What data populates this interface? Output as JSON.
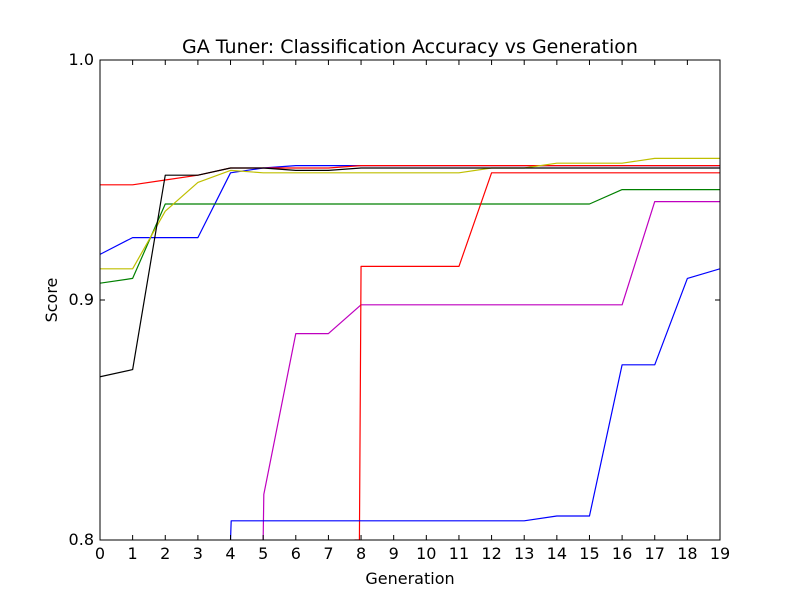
{
  "chart_data": {
    "type": "line",
    "title": "GA Tuner: Classification Accuracy vs Generation",
    "xlabel": "Generation",
    "ylabel": "Score",
    "xlim": [
      0,
      19
    ],
    "ylim": [
      0.8,
      1.0
    ],
    "grid": false,
    "x_ticks": [
      "0",
      "1",
      "2",
      "3",
      "4",
      "5",
      "6",
      "7",
      "8",
      "9",
      "10",
      "11",
      "12",
      "13",
      "14",
      "15",
      "16",
      "17",
      "18",
      "19"
    ],
    "y_ticks": [
      "0.8",
      "0.9",
      "1.0"
    ],
    "series": [
      {
        "color": "#0000ff",
        "x": [
          0,
          1,
          2,
          3,
          4,
          5,
          6,
          7,
          8,
          9,
          10,
          11,
          12,
          13,
          14,
          15,
          16,
          17,
          18,
          19
        ],
        "y": [
          0.919,
          0.926,
          0.926,
          0.926,
          0.953,
          0.955,
          0.956,
          0.956,
          0.956,
          0.956,
          0.956,
          0.956,
          0.956,
          0.956,
          0.956,
          0.956,
          0.956,
          0.956,
          0.956,
          0.956
        ]
      },
      {
        "color": "#008000",
        "x": [
          0,
          1,
          2,
          3,
          4,
          5,
          6,
          7,
          8,
          9,
          10,
          11,
          12,
          13,
          14,
          15,
          16,
          17,
          18,
          19
        ],
        "y": [
          0.907,
          0.909,
          0.94,
          0.94,
          0.94,
          0.94,
          0.94,
          0.94,
          0.94,
          0.94,
          0.94,
          0.94,
          0.94,
          0.94,
          0.94,
          0.94,
          0.946,
          0.946,
          0.946,
          0.946
        ]
      },
      {
        "color": "#ff0000",
        "x": [
          0,
          1,
          2,
          3,
          4,
          5,
          6,
          7,
          8,
          9,
          10,
          11,
          12,
          13,
          14,
          15,
          16,
          17,
          18,
          19
        ],
        "y": [
          0.948,
          0.948,
          0.95,
          0.952,
          0.955,
          0.955,
          0.955,
          0.955,
          0.956,
          0.956,
          0.956,
          0.956,
          0.956,
          0.956,
          0.956,
          0.956,
          0.956,
          0.956,
          0.956,
          0.956
        ]
      },
      {
        "color": "#bfbf00",
        "x": [
          0,
          1,
          2,
          3,
          4,
          5,
          6,
          7,
          8,
          9,
          10,
          11,
          12,
          13,
          14,
          15,
          16,
          17,
          18,
          19
        ],
        "y": [
          0.913,
          0.913,
          0.937,
          0.949,
          0.954,
          0.953,
          0.953,
          0.953,
          0.953,
          0.953,
          0.953,
          0.953,
          0.955,
          0.955,
          0.957,
          0.957,
          0.957,
          0.959,
          0.959,
          0.959
        ]
      },
      {
        "color": "#000000",
        "x": [
          0,
          1,
          2,
          3,
          4,
          5,
          6,
          7,
          8,
          9,
          10,
          11,
          12,
          13,
          14,
          15,
          16,
          17,
          18,
          19
        ],
        "y": [
          0.868,
          0.871,
          0.952,
          0.952,
          0.955,
          0.955,
          0.954,
          0.954,
          0.955,
          0.955,
          0.955,
          0.955,
          0.955,
          0.955,
          0.955,
          0.955,
          0.955,
          0.955,
          0.955,
          0.955
        ]
      },
      {
        "color": "#bf00bf",
        "x": [
          5,
          5.02,
          6,
          7,
          8,
          9,
          10,
          11,
          12,
          13,
          14,
          15,
          16,
          17,
          18,
          19
        ],
        "y": [
          0.8,
          0.819,
          0.886,
          0.886,
          0.898,
          0.898,
          0.898,
          0.898,
          0.898,
          0.898,
          0.898,
          0.898,
          0.898,
          0.941,
          0.941,
          0.941
        ]
      },
      {
        "color": "#ff0000",
        "x": [
          7.8,
          7.95,
          8,
          9,
          10,
          11,
          12,
          13,
          14,
          15,
          16,
          17,
          18,
          19
        ],
        "y": [
          0.8,
          0.8,
          0.914,
          0.914,
          0.914,
          0.914,
          0.953,
          0.953,
          0.953,
          0.953,
          0.953,
          0.953,
          0.953,
          0.953
        ]
      },
      {
        "color": "#0000ff",
        "x": [
          4,
          4.02,
          5,
          6,
          7,
          8,
          9,
          10,
          11,
          12,
          13,
          14,
          15,
          16,
          17,
          18,
          19
        ],
        "y": [
          0.8,
          0.808,
          0.808,
          0.808,
          0.808,
          0.808,
          0.808,
          0.808,
          0.808,
          0.808,
          0.808,
          0.81,
          0.81,
          0.873,
          0.873,
          0.909,
          0.913
        ]
      }
    ]
  }
}
